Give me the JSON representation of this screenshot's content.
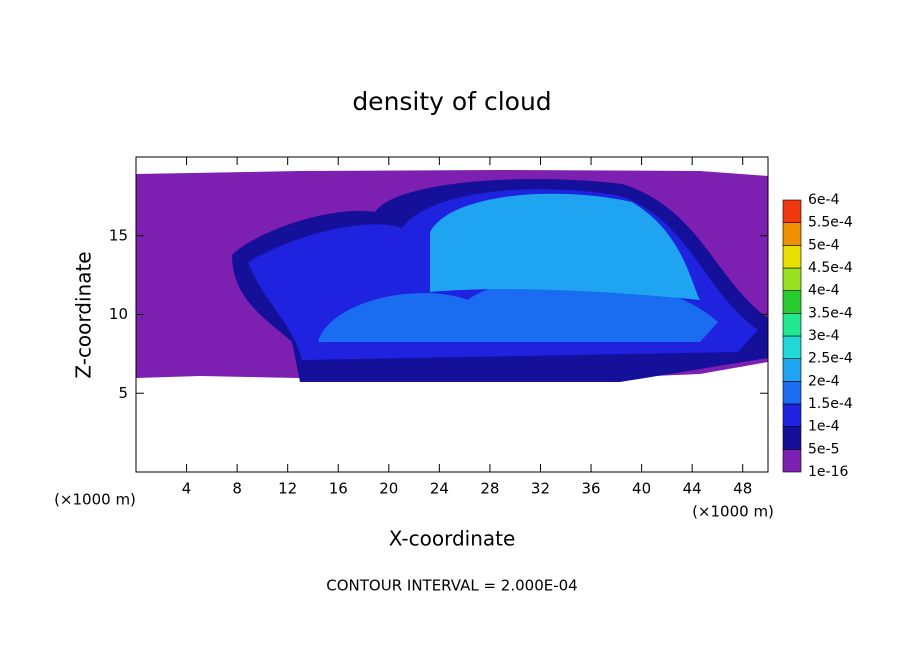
{
  "chart_data": {
    "type": "contour",
    "title": "density of cloud",
    "xlabel": "X-coordinate",
    "ylabel": "Z-coordinate",
    "xunit": "(×1000 m)",
    "yunit": "(×1000 m)",
    "note": "CONTOUR INTERVAL = 2.000E-04",
    "xlim": [
      0,
      50
    ],
    "ylim": [
      0,
      20
    ],
    "xticks": [
      4,
      8,
      12,
      16,
      20,
      24,
      28,
      32,
      36,
      40,
      44,
      48
    ],
    "yticks": [
      5,
      10,
      15
    ],
    "colorbar": {
      "ticks": [
        {
          "value": 1e-16,
          "label": "1e-16"
        },
        {
          "value": 5e-05,
          "label": "5e-5"
        },
        {
          "value": 0.0001,
          "label": "1e-4"
        },
        {
          "value": 0.00015,
          "label": "1.5e-4"
        },
        {
          "value": 0.0002,
          "label": "2e-4"
        },
        {
          "value": 0.00025,
          "label": "2.5e-4"
        },
        {
          "value": 0.0003,
          "label": "3e-4"
        },
        {
          "value": 0.00035,
          "label": "3.5e-4"
        },
        {
          "value": 0.0004,
          "label": "4e-4"
        },
        {
          "value": 0.00045,
          "label": "4.5e-4"
        },
        {
          "value": 0.0005,
          "label": "5e-4"
        },
        {
          "value": 0.00055,
          "label": "5.5e-4"
        },
        {
          "value": 0.0006,
          "label": "6e-4"
        }
      ],
      "colors": [
        "#7d1fb0",
        "#14109a",
        "#1f22de",
        "#1a6cf0",
        "#1ea4f0",
        "#20d8d8",
        "#20e890",
        "#28cc30",
        "#98e020",
        "#e8e000",
        "#f09000",
        "#f03810",
        "#f08c8c"
      ]
    }
  }
}
